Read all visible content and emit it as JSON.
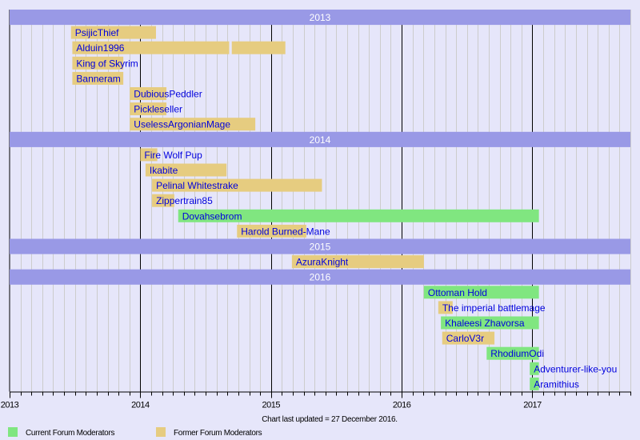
{
  "chart_data": {
    "type": "timeline",
    "xlim": [
      2013,
      2017.75
    ],
    "x_ticks": [
      "2013",
      "2014",
      "2015",
      "2016",
      "2017"
    ],
    "grid": "monthly vertical lines, yearly black lines",
    "colors": {
      "current": "#80e680",
      "former": "#e6cc80",
      "band": "#9999e6",
      "background": "#e6e6fa",
      "label": "#0000dd"
    },
    "rows": [
      {
        "kind": "band",
        "label": "2013"
      },
      {
        "kind": "bar",
        "name": "PsijicThief",
        "status": "former",
        "spans": [
          [
            2013.47,
            2014.12
          ]
        ]
      },
      {
        "kind": "bar",
        "name": "Alduin1996",
        "status": "former",
        "spans": [
          [
            2013.48,
            2014.68
          ],
          [
            2014.7,
            2015.11
          ]
        ]
      },
      {
        "kind": "bar",
        "name": "King of Skyrim",
        "status": "former",
        "spans": [
          [
            2013.48,
            2013.87
          ]
        ]
      },
      {
        "kind": "bar",
        "name": "Banneram",
        "status": "former",
        "spans": [
          [
            2013.48,
            2013.87
          ]
        ]
      },
      {
        "kind": "bar",
        "name": "DubiousPeddler",
        "status": "former",
        "spans": [
          [
            2013.92,
            2014.2
          ]
        ]
      },
      {
        "kind": "bar",
        "name": "Pickleseller",
        "status": "former",
        "spans": [
          [
            2013.92,
            2014.2
          ]
        ]
      },
      {
        "kind": "bar",
        "name": "UselessArgonianMage",
        "status": "former",
        "spans": [
          [
            2013.92,
            2014.88
          ]
        ]
      },
      {
        "kind": "band",
        "label": "2014"
      },
      {
        "kind": "bar",
        "name": "Fire Wolf Pup",
        "status": "former",
        "spans": [
          [
            2014.0,
            2014.13
          ]
        ]
      },
      {
        "kind": "bar",
        "name": "Ikabite",
        "status": "former",
        "spans": [
          [
            2014.04,
            2014.66
          ]
        ]
      },
      {
        "kind": "bar",
        "name": "Pelinal Whitestrake",
        "status": "former",
        "spans": [
          [
            2014.09,
            2015.39
          ]
        ]
      },
      {
        "kind": "bar",
        "name": "Zippertrain85",
        "status": "former",
        "spans": [
          [
            2014.09,
            2014.26
          ]
        ]
      },
      {
        "kind": "bar",
        "name": "Dovahsebrom",
        "status": "current",
        "spans": [
          [
            2014.29,
            2017.05
          ]
        ]
      },
      {
        "kind": "bar",
        "name": "Harold Burned-Mane",
        "status": "former",
        "spans": [
          [
            2014.74,
            2015.27
          ]
        ]
      },
      {
        "kind": "band",
        "label": "2015"
      },
      {
        "kind": "bar",
        "name": "AzuraKnight",
        "status": "former",
        "spans": [
          [
            2015.16,
            2016.17
          ]
        ]
      },
      {
        "kind": "band",
        "label": "2016"
      },
      {
        "kind": "bar",
        "name": "Ottoman Hold",
        "status": "current",
        "spans": [
          [
            2016.17,
            2017.05
          ]
        ]
      },
      {
        "kind": "bar",
        "name": "The imperial battlemage",
        "status": "former",
        "spans": [
          [
            2016.28,
            2016.39
          ]
        ]
      },
      {
        "kind": "bar",
        "name": "Khaleesi Zhavorsa",
        "status": "current",
        "spans": [
          [
            2016.3,
            2017.05
          ]
        ]
      },
      {
        "kind": "bar",
        "name": "CarloV3r",
        "status": "former",
        "spans": [
          [
            2016.31,
            2016.71
          ]
        ]
      },
      {
        "kind": "bar",
        "name": "RhodiumOdi",
        "status": "current",
        "spans": [
          [
            2016.65,
            2017.05
          ]
        ]
      },
      {
        "kind": "bar",
        "name": "Adventurer-like-you",
        "status": "current",
        "spans": [
          [
            2016.98,
            2017.05
          ]
        ]
      },
      {
        "kind": "bar",
        "name": "Aramithius",
        "status": "current",
        "spans": [
          [
            2016.98,
            2017.05
          ]
        ]
      }
    ],
    "footer": "Chart last updated = 27 December 2016.",
    "legend": [
      {
        "status": "current",
        "label": "Current Forum Moderators"
      },
      {
        "status": "former",
        "label": "Former Forum Moderators"
      }
    ],
    "legend_placement": "bottom-left"
  }
}
